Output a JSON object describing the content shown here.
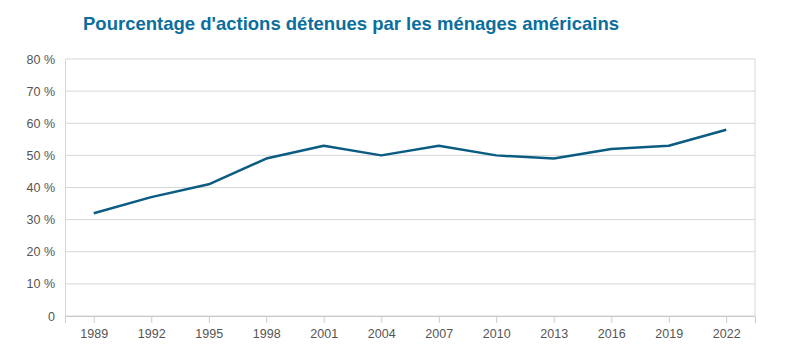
{
  "chart_data": {
    "type": "line",
    "title": "Pourcentage d'actions détenues par les ménages américains",
    "categories": [
      "1989",
      "1992",
      "1995",
      "1998",
      "2001",
      "2004",
      "2007",
      "2010",
      "2013",
      "2016",
      "2019",
      "2022"
    ],
    "values": [
      32,
      37,
      41,
      49,
      53,
      50,
      53,
      50,
      49,
      52,
      53,
      58
    ],
    "color": "#0a5c82",
    "ylim": [
      0,
      80
    ],
    "yticks": [
      0,
      {
        "value": 10,
        "label": "10 %"
      },
      {
        "value": 20,
        "label": "20 %"
      },
      {
        "value": 30,
        "label": "30 %"
      },
      {
        "value": 40,
        "label": "40 %"
      },
      {
        "value": 50,
        "label": "50 %"
      },
      {
        "value": 60,
        "label": "60 %"
      },
      {
        "value": 70,
        "label": "70 %"
      },
      {
        "value": 80,
        "label": "80 %"
      }
    ],
    "grid": true
  }
}
